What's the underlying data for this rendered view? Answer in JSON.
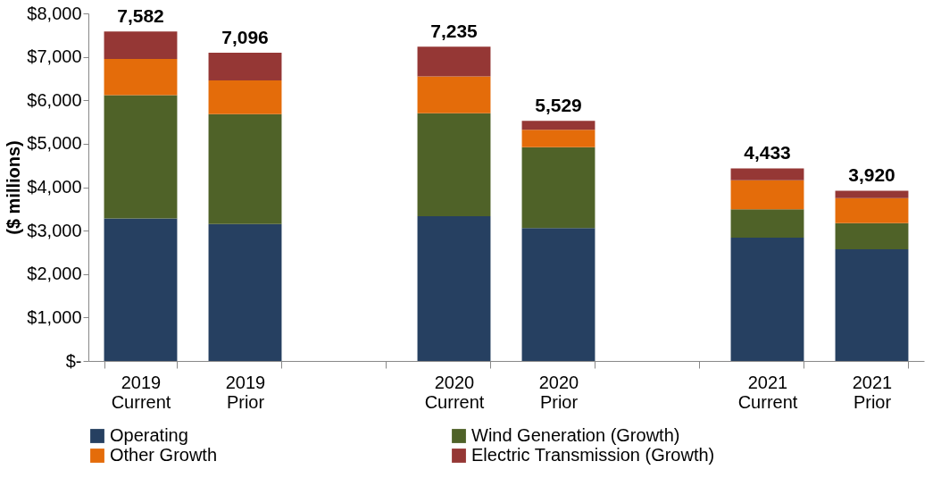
{
  "chart_data": {
    "type": "bar",
    "stacked": true,
    "ylabel": "($ millions)",
    "categories": [
      "2019 Current",
      "2019 Prior",
      null,
      "2020 Current",
      "2020 Prior",
      null,
      "2021 Current",
      "2021 Prior"
    ],
    "series": [
      {
        "name": "Operating",
        "color": "#264061",
        "values": [
          3280,
          3150,
          null,
          3330,
          3060,
          null,
          2840,
          2570
        ]
      },
      {
        "name": "Wind Generation (Growth)",
        "color": "#4f6228",
        "values": [
          2840,
          2530,
          null,
          2370,
          1860,
          null,
          650,
          600
        ]
      },
      {
        "name": "Other Growth",
        "color": "#e46c0a",
        "values": [
          830,
          780,
          null,
          850,
          400,
          null,
          670,
          580
        ]
      },
      {
        "name": "Electric Transmission (Growth)",
        "color": "#953735",
        "values": [
          632,
          636,
          null,
          685,
          209,
          null,
          273,
          170
        ]
      }
    ],
    "totals": [
      "7,582",
      "7,096",
      null,
      "7,235",
      "5,529",
      null,
      "4,433",
      "3,920"
    ],
    "ylim": [
      0,
      8000
    ],
    "yticks": [
      {
        "value": 0,
        "label": "$-"
      },
      {
        "value": 1000,
        "label": "$1,000"
      },
      {
        "value": 2000,
        "label": "$2,000"
      },
      {
        "value": 3000,
        "label": "$3,000"
      },
      {
        "value": 4000,
        "label": "$4,000"
      },
      {
        "value": 5000,
        "label": "$5,000"
      },
      {
        "value": 6000,
        "label": "$6,000"
      },
      {
        "value": 7000,
        "label": "$7,000"
      },
      {
        "value": 8000,
        "label": "$8,000"
      }
    ],
    "grid": false,
    "legend": "bottom"
  }
}
